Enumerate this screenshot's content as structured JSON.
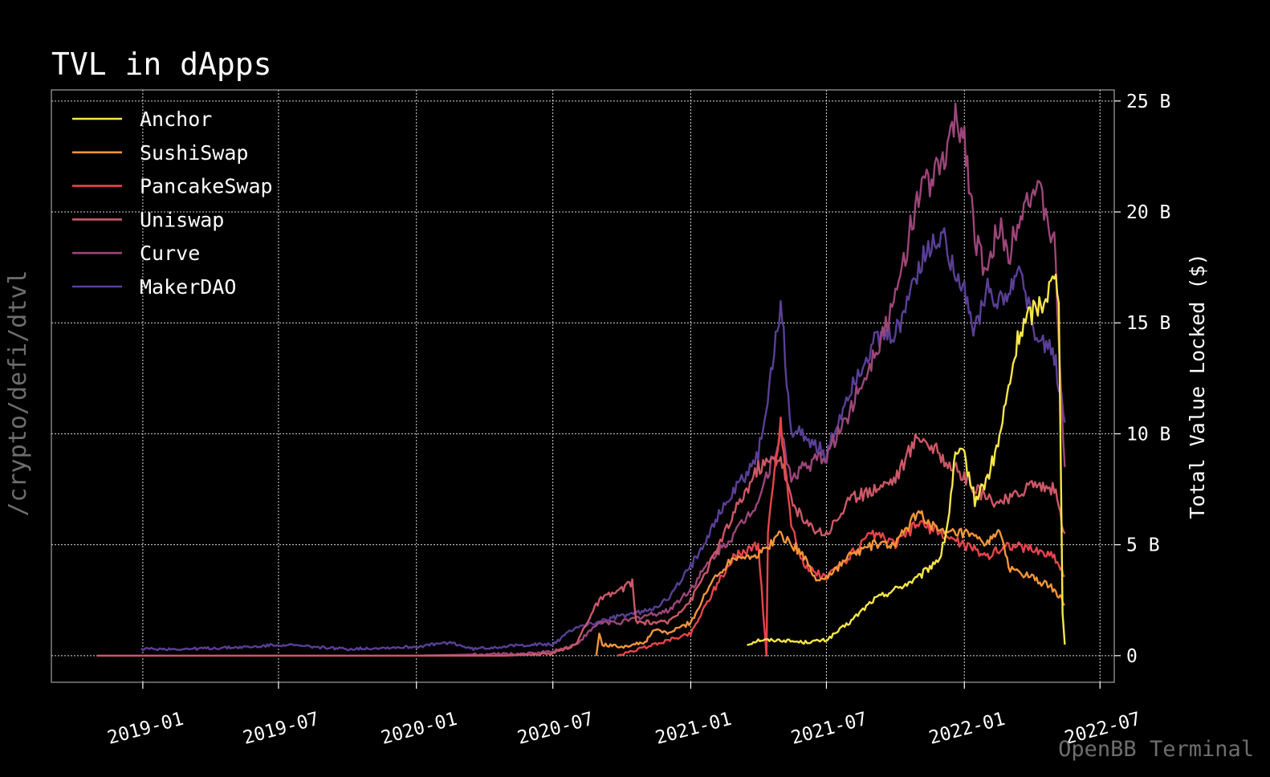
{
  "side_label": "/crypto/defi/dtvl",
  "footer": "OpenBB Terminal",
  "chart_data": {
    "type": "line",
    "title": "TVL in dApps",
    "xlabel": "",
    "ylabel": "Total Value Locked ($)",
    "x_ticks": [
      "2019-01",
      "2019-07",
      "2020-01",
      "2020-07",
      "2021-01",
      "2021-07",
      "2022-01",
      "2022-07"
    ],
    "y_ticks": [
      "0",
      "5 B",
      "10 B",
      "15 B",
      "20 B",
      "25 B"
    ],
    "xlim": [
      "2018-09-01",
      "2022-07-20"
    ],
    "ylim": [
      -1.2,
      25.5
    ],
    "y_unit": "B",
    "grid": true,
    "legend_position": "top-left",
    "series": [
      {
        "name": "Anchor",
        "color": "#f8e64a",
        "points": [
          [
            "2021-03-17",
            0.5
          ],
          [
            "2021-04-01",
            0.7
          ],
          [
            "2021-05-01",
            0.7
          ],
          [
            "2021-06-01",
            0.6
          ],
          [
            "2021-07-01",
            0.7
          ],
          [
            "2021-08-01",
            1.5
          ],
          [
            "2021-09-01",
            2.5
          ],
          [
            "2021-10-01",
            3.0
          ],
          [
            "2021-11-01",
            3.5
          ],
          [
            "2021-12-01",
            4.5
          ],
          [
            "2021-12-10",
            6.0
          ],
          [
            "2021-12-20",
            9.0
          ],
          [
            "2022-01-01",
            9.0
          ],
          [
            "2022-01-15",
            7.0
          ],
          [
            "2022-02-01",
            8.0
          ],
          [
            "2022-02-15",
            9.5
          ],
          [
            "2022-03-01",
            12.0
          ],
          [
            "2022-03-15",
            14.5
          ],
          [
            "2022-04-01",
            15.5
          ],
          [
            "2022-04-15",
            16.0
          ],
          [
            "2022-05-01",
            17.0
          ],
          [
            "2022-05-07",
            16.5
          ],
          [
            "2022-05-10",
            8.0
          ],
          [
            "2022-05-12",
            2.0
          ],
          [
            "2022-05-15",
            0.5
          ]
        ]
      },
      {
        "name": "SushiSwap",
        "color": "#f5953a",
        "points": [
          [
            "2020-08-28",
            0.0
          ],
          [
            "2020-09-01",
            1.0
          ],
          [
            "2020-09-05",
            0.5
          ],
          [
            "2020-10-01",
            0.4
          ],
          [
            "2020-11-01",
            0.6
          ],
          [
            "2020-11-15",
            1.2
          ],
          [
            "2020-12-01",
            1.0
          ],
          [
            "2021-01-01",
            1.5
          ],
          [
            "2021-02-01",
            3.5
          ],
          [
            "2021-03-01",
            4.5
          ],
          [
            "2021-04-01",
            4.5
          ],
          [
            "2021-05-01",
            5.5
          ],
          [
            "2021-06-01",
            4.5
          ],
          [
            "2021-06-15",
            3.5
          ],
          [
            "2021-07-01",
            3.5
          ],
          [
            "2021-08-01",
            4.5
          ],
          [
            "2021-09-01",
            5.0
          ],
          [
            "2021-10-01",
            5.0
          ],
          [
            "2021-11-01",
            6.5
          ],
          [
            "2021-12-01",
            5.5
          ],
          [
            "2022-01-01",
            5.5
          ],
          [
            "2022-02-01",
            5.0
          ],
          [
            "2022-02-15",
            5.8
          ],
          [
            "2022-03-01",
            4.0
          ],
          [
            "2022-04-01",
            3.5
          ],
          [
            "2022-05-01",
            3.0
          ],
          [
            "2022-05-15",
            2.3
          ]
        ]
      },
      {
        "name": "PancakeSwap",
        "color": "#e8444b",
        "points": [
          [
            "2020-09-25",
            0.0
          ],
          [
            "2021-01-01",
            1.0
          ],
          [
            "2021-02-01",
            3.0
          ],
          [
            "2021-03-01",
            4.5
          ],
          [
            "2021-04-01",
            5.0
          ],
          [
            "2021-04-12",
            0.0
          ],
          [
            "2021-04-14",
            5.5
          ],
          [
            "2021-04-25",
            9.0
          ],
          [
            "2021-05-01",
            10.5
          ],
          [
            "2021-05-15",
            6.0
          ],
          [
            "2021-06-01",
            4.0
          ],
          [
            "2021-07-01",
            3.5
          ],
          [
            "2021-08-01",
            4.5
          ],
          [
            "2021-09-01",
            5.5
          ],
          [
            "2021-10-01",
            5.0
          ],
          [
            "2021-11-01",
            6.0
          ],
          [
            "2021-12-01",
            5.5
          ],
          [
            "2022-01-01",
            5.0
          ],
          [
            "2022-02-01",
            4.5
          ],
          [
            "2022-03-01",
            5.0
          ],
          [
            "2022-04-01",
            4.8
          ],
          [
            "2022-05-01",
            4.5
          ],
          [
            "2022-05-15",
            3.6
          ]
        ]
      },
      {
        "name": "Uniswap",
        "color": "#cc5867",
        "points": [
          [
            "2018-11-01",
            0.0
          ],
          [
            "2020-05-01",
            0.0
          ],
          [
            "2020-07-01",
            0.1
          ],
          [
            "2020-08-01",
            0.5
          ],
          [
            "2020-08-15",
            1.5
          ],
          [
            "2020-09-01",
            2.5
          ],
          [
            "2020-10-01",
            3.0
          ],
          [
            "2020-10-15",
            3.3
          ],
          [
            "2020-10-20",
            1.5
          ],
          [
            "2020-11-01",
            1.5
          ],
          [
            "2020-12-01",
            1.5
          ],
          [
            "2021-01-01",
            2.5
          ],
          [
            "2021-02-01",
            4.5
          ],
          [
            "2021-03-01",
            6.5
          ],
          [
            "2021-04-01",
            8.5
          ],
          [
            "2021-05-01",
            9.0
          ],
          [
            "2021-05-15",
            7.0
          ],
          [
            "2021-06-01",
            6.0
          ],
          [
            "2021-07-01",
            5.5
          ],
          [
            "2021-08-01",
            7.0
          ],
          [
            "2021-09-01",
            7.5
          ],
          [
            "2021-10-01",
            8.0
          ],
          [
            "2021-11-01",
            10.0
          ],
          [
            "2021-12-01",
            9.0
          ],
          [
            "2022-01-01",
            8.0
          ],
          [
            "2022-02-01",
            7.0
          ],
          [
            "2022-03-01",
            7.0
          ],
          [
            "2022-04-01",
            7.8
          ],
          [
            "2022-05-01",
            7.5
          ],
          [
            "2022-05-15",
            5.5
          ]
        ]
      },
      {
        "name": "Curve",
        "color": "#9c4679",
        "points": [
          [
            "2020-01-01",
            0.0
          ],
          [
            "2020-06-01",
            0.1
          ],
          [
            "2020-07-01",
            0.2
          ],
          [
            "2020-08-01",
            0.5
          ],
          [
            "2020-09-01",
            1.5
          ],
          [
            "2020-10-01",
            1.5
          ],
          [
            "2020-11-01",
            1.8
          ],
          [
            "2020-12-01",
            2.0
          ],
          [
            "2021-01-01",
            3.0
          ],
          [
            "2021-02-01",
            4.5
          ],
          [
            "2021-03-01",
            5.5
          ],
          [
            "2021-04-01",
            7.0
          ],
          [
            "2021-05-01",
            10.0
          ],
          [
            "2021-05-15",
            8.0
          ],
          [
            "2021-06-01",
            8.5
          ],
          [
            "2021-07-01",
            9.0
          ],
          [
            "2021-08-01",
            11.0
          ],
          [
            "2021-09-01",
            13.5
          ],
          [
            "2021-10-01",
            16.0
          ],
          [
            "2021-11-01",
            21.0
          ],
          [
            "2021-12-01",
            22.0
          ],
          [
            "2021-12-20",
            24.0
          ],
          [
            "2022-01-01",
            23.5
          ],
          [
            "2022-01-15",
            19.0
          ],
          [
            "2022-02-01",
            17.0
          ],
          [
            "2022-02-15",
            19.5
          ],
          [
            "2022-03-01",
            18.0
          ],
          [
            "2022-03-15",
            20.0
          ],
          [
            "2022-04-01",
            21.0
          ],
          [
            "2022-04-15",
            20.5
          ],
          [
            "2022-05-01",
            18.5
          ],
          [
            "2022-05-15",
            8.5
          ]
        ]
      },
      {
        "name": "MakerDAO",
        "color": "#5a3f96",
        "points": [
          [
            "2018-12-30",
            0.3
          ],
          [
            "2019-03-01",
            0.3
          ],
          [
            "2019-06-01",
            0.4
          ],
          [
            "2019-07-01",
            0.5
          ],
          [
            "2019-10-01",
            0.3
          ],
          [
            "2020-01-01",
            0.4
          ],
          [
            "2020-02-15",
            0.6
          ],
          [
            "2020-03-15",
            0.3
          ],
          [
            "2020-06-01",
            0.5
          ],
          [
            "2020-07-01",
            0.5
          ],
          [
            "2020-08-01",
            1.3
          ],
          [
            "2020-09-01",
            1.5
          ],
          [
            "2020-10-01",
            1.8
          ],
          [
            "2020-11-01",
            2.0
          ],
          [
            "2020-12-01",
            2.5
          ],
          [
            "2021-01-01",
            4.0
          ],
          [
            "2021-02-01",
            6.0
          ],
          [
            "2021-03-01",
            7.5
          ],
          [
            "2021-04-01",
            9.0
          ],
          [
            "2021-04-20",
            13.0
          ],
          [
            "2021-05-01",
            16.0
          ],
          [
            "2021-05-15",
            10.0
          ],
          [
            "2021-06-01",
            10.0
          ],
          [
            "2021-07-01",
            9.0
          ],
          [
            "2021-08-01",
            12.0
          ],
          [
            "2021-09-01",
            14.0
          ],
          [
            "2021-10-01",
            14.5
          ],
          [
            "2021-11-01",
            17.5
          ],
          [
            "2021-12-01",
            19.0
          ],
          [
            "2021-12-20",
            17.5
          ],
          [
            "2022-01-01",
            16.5
          ],
          [
            "2022-01-15",
            14.5
          ],
          [
            "2022-02-01",
            16.5
          ],
          [
            "2022-03-01",
            16.0
          ],
          [
            "2022-03-15",
            17.5
          ],
          [
            "2022-04-01",
            15.0
          ],
          [
            "2022-05-01",
            13.5
          ],
          [
            "2022-05-15",
            10.5
          ]
        ]
      }
    ]
  }
}
